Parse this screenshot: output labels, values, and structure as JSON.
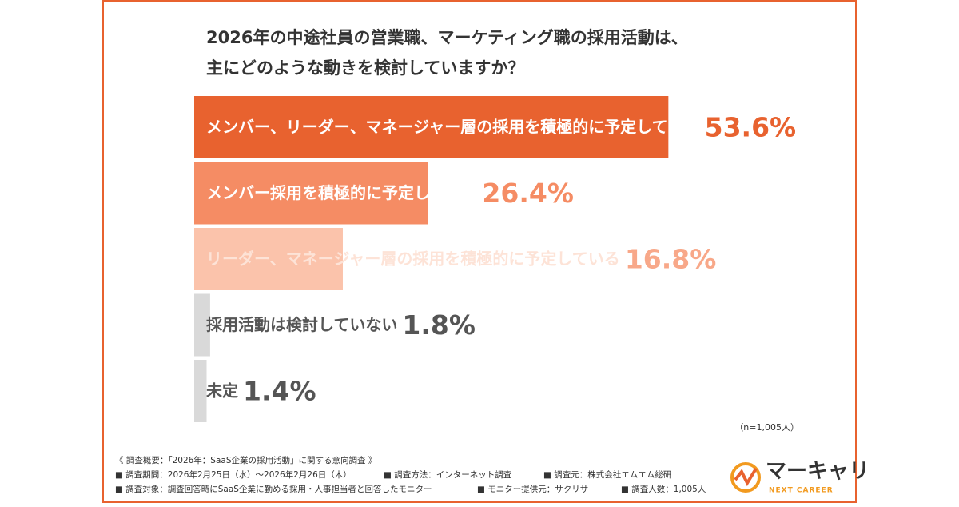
{
  "chart_data": {
    "type": "hbar",
    "title": [
      "2026年の中途社員の営業職、マーケティング職の採用活動は、",
      "主にどのような動きを検討していますか？"
    ],
    "categories": [
      "メンバー、リーダー、マネージャー層の採用を積極的に予定している",
      "メンバー採用を積極的に予定している",
      "リーダー、マネージャー層の採用を積極的に予定している",
      "採用活動は検討していない",
      "未定"
    ],
    "values": [
      53.6,
      26.4,
      16.8,
      1.8,
      1.4
    ],
    "value_labels": [
      "53.6%",
      "26.4%",
      "16.8%",
      "1.8%",
      "1.4%"
    ],
    "colors": [
      "#e8622f",
      "#f58c64",
      "#fbc3ab",
      "#d9d9d9",
      "#d9d9d9"
    ],
    "note": "（n=1,005人）"
  },
  "survey": {
    "heading": "《 調査概要：「2026年：SaaS企業の採用活動」に関する意向調査 》",
    "rows": [
      [
        "■ 調査期間：2026年2月25日（水）～2026年2月26日（木）",
        "■ 調査方法：インターネット調査",
        "■ 調査元：株式会社エムエム総研"
      ],
      [
        "■ 調査対象：調査回答時にSaaS企業に勤める採用・人事担当者と回答したモニター",
        "■ モニター提供元：サクリサ",
        "■ 調査人数：1,005人"
      ]
    ]
  },
  "logo": {
    "name": "マーキャリ",
    "tagline": "NEXT CAREER"
  }
}
